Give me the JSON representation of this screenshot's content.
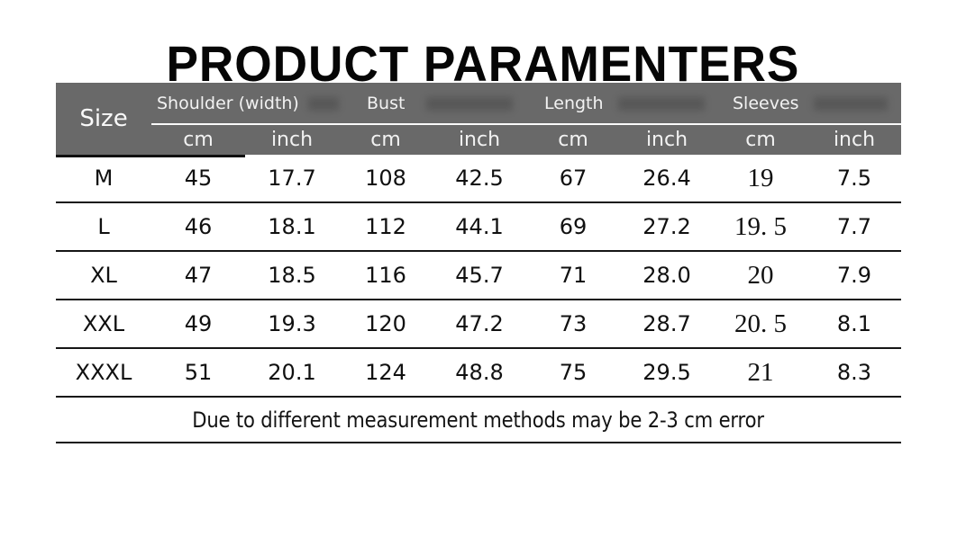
{
  "title": "PRODUCT PARAMENTERS",
  "table": {
    "size_header": "Size",
    "groups": [
      {
        "label": "Shoulder (width)"
      },
      {
        "label": "Bust"
      },
      {
        "label": "Length"
      },
      {
        "label": "Sleeves"
      }
    ],
    "unit_headers": [
      "cm",
      "inch",
      "cm",
      "inch",
      "cm",
      "inch",
      "cm",
      "inch"
    ],
    "rows": [
      {
        "size": "M",
        "values": [
          "45",
          "17.7",
          "108",
          "42.5",
          "67",
          "26.4",
          "19",
          "7.5"
        ]
      },
      {
        "size": "L",
        "values": [
          "46",
          "18.1",
          "112",
          "44.1",
          "69",
          "27.2",
          "19. 5",
          "7.7"
        ]
      },
      {
        "size": "XL",
        "values": [
          "47",
          "18.5",
          "116",
          "45.7",
          "71",
          "28.0",
          "20",
          "7.9"
        ]
      },
      {
        "size": "XXL",
        "values": [
          "49",
          "19.3",
          "120",
          "47.2",
          "73",
          "28.7",
          "20. 5",
          "8.1"
        ]
      },
      {
        "size": "XXXL",
        "values": [
          "51",
          "20.1",
          "124",
          "48.8",
          "75",
          "29.5",
          "21",
          "8.3"
        ]
      }
    ],
    "note": "Due to different measurement methods may be 2-3 cm error"
  },
  "colors": {
    "header_bg": "#696969",
    "header_text": "#f2f2f2",
    "body_text": "#141414",
    "row_line": "#151515",
    "background": "#ffffff"
  }
}
